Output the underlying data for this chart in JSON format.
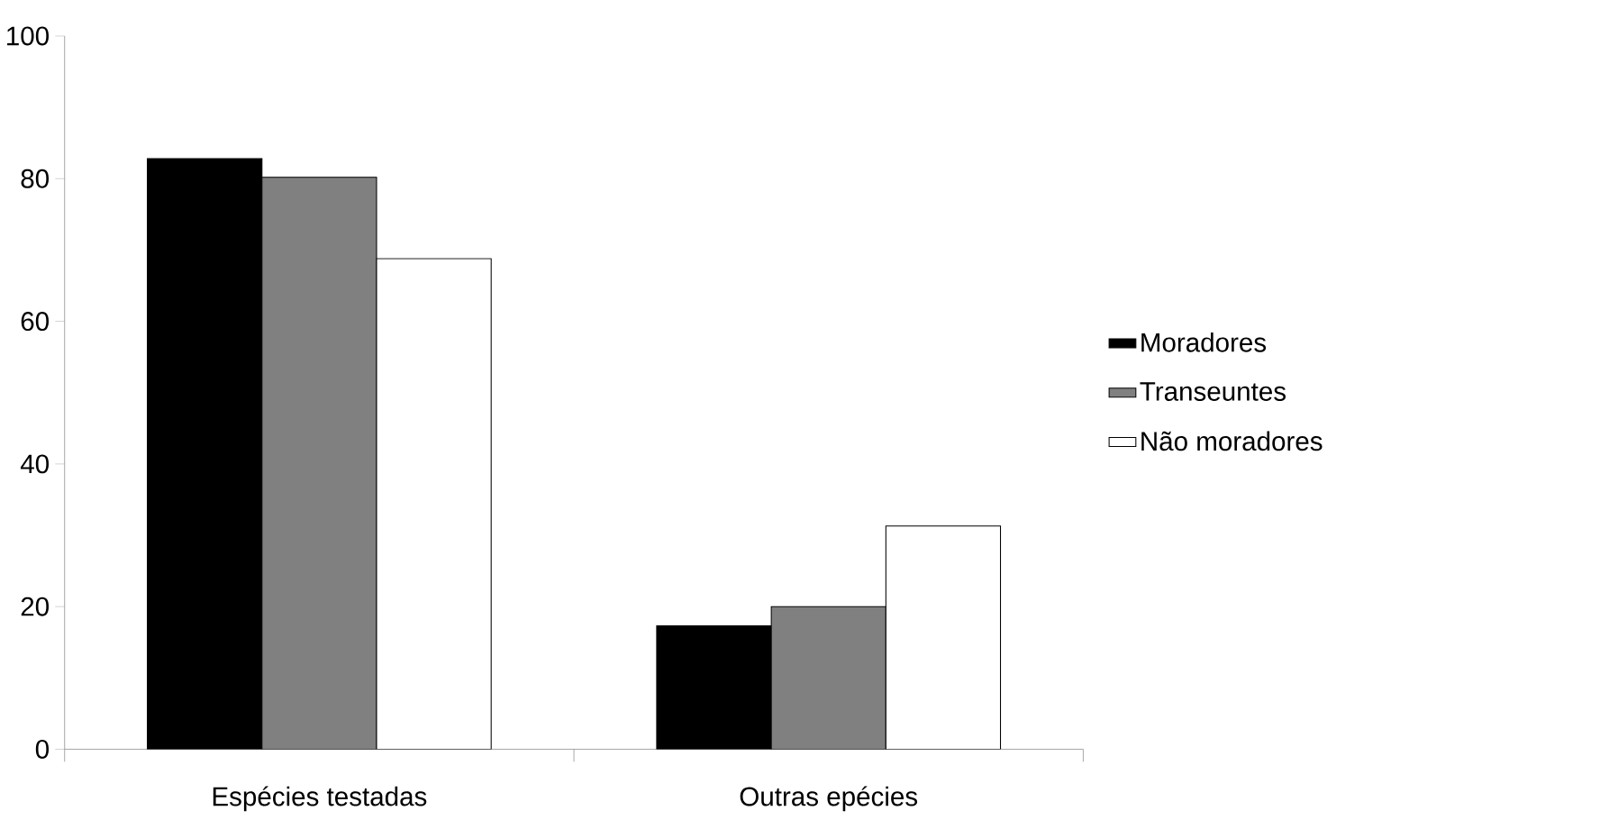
{
  "chart_data": {
    "type": "bar",
    "categories": [
      "Espécies testadas",
      "Outras epécies"
    ],
    "series": [
      {
        "name": "Moradores",
        "color": "#000000",
        "values": [
          82.8,
          17.3
        ]
      },
      {
        "name": "Transeuntes",
        "color": "#808080",
        "values": [
          80.2,
          20
        ]
      },
      {
        "name": "Não moradores",
        "color": "#ffffff",
        "values": [
          68.8,
          31.3
        ]
      }
    ],
    "ylim": [
      0,
      100
    ],
    "yticks": [
      0,
      20,
      40,
      60,
      80,
      100
    ],
    "grid": false,
    "legend": "right"
  }
}
